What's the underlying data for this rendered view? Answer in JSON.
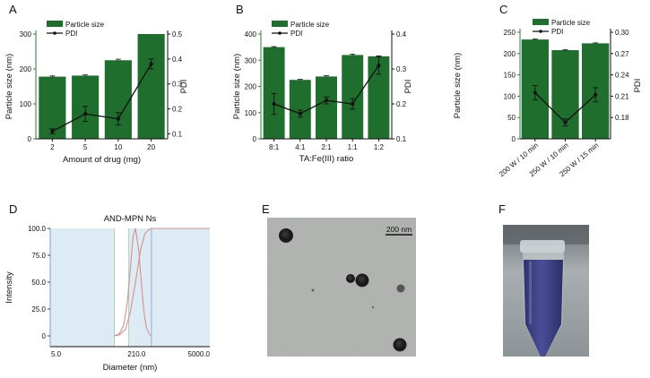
{
  "panels": {
    "A": "A",
    "B": "B",
    "C": "C",
    "D": "D",
    "E": "E",
    "F": "F"
  },
  "colors": {
    "bar": "#1f6e2e",
    "green_axis": "#2e7d32",
    "pdi_line": "#111111",
    "dls_fill": "#dcebf4",
    "dls_curve": "#d98f8f",
    "dls_guide": "#9fc6ab",
    "dls_axis_blue": "#8a9ad0"
  },
  "chart_data": [
    {
      "id": "A",
      "type": "bar",
      "categories": [
        "2",
        "5",
        "10",
        "20"
      ],
      "xlabel": "Amount of drug (mg)",
      "ylabel": "Particle size (nm)",
      "y2label": "PDI",
      "ylim": [
        0,
        300
      ],
      "yticks": [
        "0",
        "100",
        "200",
        "300"
      ],
      "y2lim": [
        0.08,
        0.5
      ],
      "y2ticks": [
        "0.1",
        "0.2",
        "0.3",
        "0.4",
        "0.5"
      ],
      "legend": {
        "bar": "Particle size",
        "line": "PDI",
        "placement": "top-left"
      },
      "series": [
        {
          "name": "Particle size",
          "kind": "bar",
          "values": [
            178,
            181,
            225,
            300
          ],
          "errors": [
            2,
            2,
            3,
            0
          ]
        },
        {
          "name": "PDI",
          "kind": "line",
          "values": [
            0.11,
            0.18,
            0.16,
            0.38
          ],
          "errors": [
            0.01,
            0.03,
            0.025,
            0.02
          ]
        }
      ]
    },
    {
      "id": "B",
      "type": "bar",
      "categories": [
        "8:1",
        "4:1",
        "2:1",
        "1:1",
        "1:2"
      ],
      "xlabel": "TA:Fe(III) ratio",
      "ylabel": "Particle size (nm)",
      "y2label": "PDI",
      "ylim": [
        0,
        400
      ],
      "yticks": [
        "0",
        "100",
        "200",
        "300",
        "400"
      ],
      "y2lim": [
        0.1,
        0.4
      ],
      "y2ticks": [
        "0.1",
        "0.2",
        "0.3",
        "0.4"
      ],
      "legend": {
        "bar": "Particle size",
        "line": "PDI",
        "placement": "top-left"
      },
      "series": [
        {
          "name": "Particle size",
          "kind": "bar",
          "values": [
            350,
            225,
            238,
            320,
            315
          ],
          "errors": [
            2,
            2,
            3,
            3,
            2
          ]
        },
        {
          "name": "PDI",
          "kind": "line",
          "values": [
            0.2,
            0.172,
            0.21,
            0.2,
            0.31
          ],
          "errors": [
            0.03,
            0.01,
            0.01,
            0.015,
            0.025
          ]
        }
      ]
    },
    {
      "id": "C",
      "type": "bar",
      "categories": [
        "200 W / 10 min",
        "250 W / 10 min",
        "250 W / 15 min"
      ],
      "xlabel": "",
      "ylabel": "Particle size (nm)",
      "y2label": "PDI",
      "ylim": [
        0,
        250
      ],
      "yticks": [
        "0",
        "50",
        "100",
        "150",
        "200",
        "250"
      ],
      "y2lim": [
        0.15,
        0.3
      ],
      "y2ticks": [
        "0.18",
        "0.21",
        "0.24",
        "0.27",
        "0.30"
      ],
      "legend": {
        "bar": "Particle size",
        "line": "PDI",
        "placement": "top-left"
      },
      "series": [
        {
          "name": "Particle size",
          "kind": "bar",
          "values": [
            233,
            208,
            224
          ],
          "errors": [
            1,
            1,
            1
          ]
        },
        {
          "name": "PDI",
          "kind": "line",
          "values": [
            0.215,
            0.173,
            0.212
          ],
          "errors": [
            0.01,
            0.005,
            0.01
          ]
        }
      ]
    },
    {
      "id": "D",
      "type": "line",
      "title": "AND-MPN Ns",
      "xlabel": "Diameter (nm)",
      "ylabel": "Intensity",
      "xscale": "log",
      "xlim": [
        5,
        5000
      ],
      "xticks": [
        "5.0",
        "210.0",
        "5000.0"
      ],
      "ylim": [
        -10,
        100
      ],
      "yticks": [
        "0",
        "25.0",
        "50.0",
        "75.0",
        "100.0"
      ],
      "series": [
        {
          "kind": "distribution",
          "x": [
            80,
            100,
            120,
            140,
            160,
            180,
            200,
            230,
            260,
            290,
            320,
            360,
            400
          ],
          "values": [
            0,
            2,
            10,
            30,
            62,
            92,
            100,
            80,
            48,
            22,
            8,
            2,
            0
          ]
        },
        {
          "kind": "cumulative",
          "x": [
            80,
            100,
            130,
            160,
            200,
            250,
            300,
            360,
            400
          ],
          "values": [
            0,
            1,
            6,
            22,
            50,
            80,
            95,
            99,
            100
          ]
        }
      ]
    }
  ],
  "tem": {
    "scale_label": "200 nm"
  }
}
